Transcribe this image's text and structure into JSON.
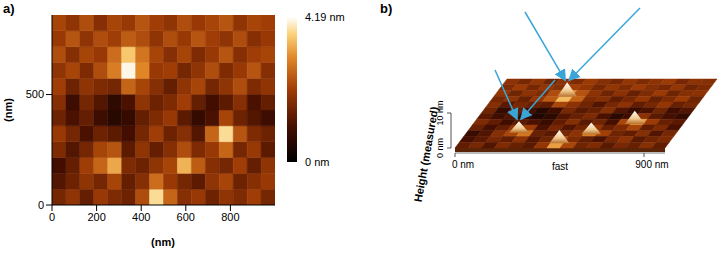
{
  "chart_data": [
    {
      "type": "heatmap",
      "title": "a)",
      "x_label": "(nm)",
      "y_label": "(nm)",
      "xlim": [
        0,
        1000
      ],
      "ylim": [
        0,
        860
      ],
      "xticks": [
        0,
        200,
        400,
        600,
        800
      ],
      "yticks": [
        0,
        500
      ],
      "cells": [
        [
          1.6,
          1.9,
          1.4,
          2.0,
          1.7,
          1.5,
          2.3,
          3.8,
          2.6,
          1.8,
          2.0,
          1.5,
          1.9,
          1.7,
          2.1,
          1.6
        ],
        [
          1.2,
          1.5,
          1.9,
          1.6,
          2.2,
          1.4,
          1.8,
          2.7,
          2.0,
          1.6,
          1.3,
          1.9,
          2.2,
          1.5,
          1.8,
          2.0
        ],
        [
          1.0,
          1.4,
          2.1,
          2.6,
          3.3,
          1.7,
          1.5,
          1.9,
          2.2,
          3.4,
          2.5,
          1.8,
          1.6,
          2.1,
          1.4,
          1.9
        ],
        [
          1.7,
          1.2,
          1.6,
          2.2,
          2.4,
          1.3,
          1.9,
          1.4,
          1.8,
          2.3,
          1.7,
          2.0,
          2.6,
          1.6,
          2.0,
          1.3
        ],
        [
          2.0,
          1.6,
          1.1,
          1.5,
          1.3,
          1.0,
          1.6,
          2.1,
          1.5,
          1.8,
          1.2,
          2.6,
          3.8,
          2.4,
          1.7,
          1.5
        ],
        [
          1.5,
          1.1,
          1.4,
          0.9,
          0.6,
          0.8,
          1.4,
          1.7,
          2.0,
          1.3,
          0.8,
          1.1,
          2.2,
          1.5,
          1.2,
          0.9
        ],
        [
          1.8,
          0.9,
          1.6,
          1.2,
          0.7,
          1.1,
          1.9,
          1.5,
          1.7,
          2.1,
          1.4,
          1.0,
          1.3,
          1.8,
          1.1,
          1.4
        ],
        [
          2.1,
          1.5,
          1.9,
          1.7,
          1.6,
          2.6,
          2.2,
          1.8,
          1.4,
          1.9,
          2.2,
          1.6,
          1.9,
          2.3,
          1.7,
          1.9
        ],
        [
          1.9,
          2.2,
          1.7,
          2.3,
          2.9,
          4.1,
          3.0,
          2.0,
          2.1,
          1.6,
          1.9,
          2.3,
          1.7,
          2.0,
          2.4,
          1.8
        ],
        [
          2.3,
          1.8,
          2.2,
          2.0,
          2.7,
          3.6,
          2.8,
          2.2,
          1.8,
          2.2,
          1.7,
          2.0,
          2.4,
          1.8,
          2.1,
          2.2
        ],
        [
          2.0,
          2.4,
          1.9,
          2.3,
          2.1,
          2.5,
          2.3,
          1.9,
          2.3,
          2.0,
          2.4,
          2.1,
          1.9,
          2.3,
          1.8,
          2.0
        ],
        [
          2.2,
          1.9,
          2.3,
          1.8,
          2.2,
          2.0,
          2.4,
          2.1,
          1.9,
          2.3,
          2.0,
          2.2,
          2.4,
          1.9,
          2.2,
          2.1
        ]
      ],
      "colorbar_range": [
        0,
        4.19
      ],
      "colorbar_ticks": [
        {
          "value": 0,
          "label": "0 nm"
        },
        {
          "value": 4.19,
          "label": "4.19 nm"
        }
      ]
    },
    {
      "type": "surface",
      "title": "b)",
      "x_label": "fast",
      "z_label": "Height (measured)",
      "xlim": [
        0,
        1000
      ],
      "ylim": [
        0,
        860
      ],
      "xticks": [
        {
          "value": 0,
          "label": "0 nm"
        },
        {
          "value": 900,
          "label": "900 nm"
        }
      ],
      "zticks": [
        {
          "value": 0,
          "label": "0 nm"
        },
        {
          "value": 10,
          "label": "10 nm"
        }
      ],
      "peaks": {
        "x": [
          350,
          250,
          480,
          600,
          770
        ],
        "y": [
          640,
          190,
          60,
          170,
          300
        ],
        "height": [
          4.1,
          3.3,
          3.8,
          3.4,
          3.8
        ]
      }
    }
  ]
}
